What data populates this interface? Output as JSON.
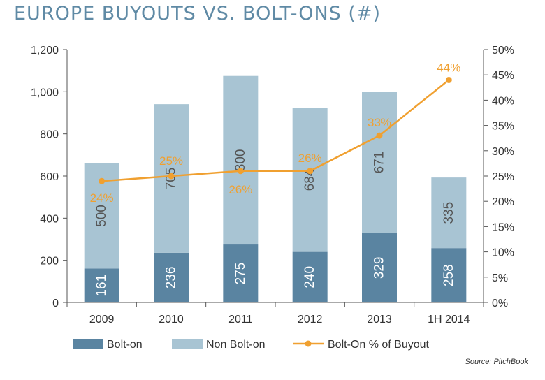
{
  "chart_data": {
    "type": "bar",
    "title": "EUROPE BUYOUTS VS. BOLT-ONS (#)",
    "categories": [
      "2009",
      "2010",
      "2011",
      "2012",
      "2013",
      "1H 2014"
    ],
    "series": [
      {
        "name": "Bolt-on",
        "type": "bar",
        "stack": "deals",
        "values": [
          161,
          236,
          275,
          240,
          329,
          258
        ],
        "color": "#5a84a1"
      },
      {
        "name": "Non Bolt-on",
        "type": "bar",
        "stack": "deals",
        "values": [
          500,
          705,
          800,
          684,
          671,
          335
        ],
        "color": "#a8c4d3"
      },
      {
        "name": "Bolt-On % of Buyout",
        "type": "line",
        "axis": "right",
        "values": [
          24,
          25,
          26,
          26,
          33,
          44
        ],
        "labels": [
          "24%",
          "25%",
          "26%",
          "26%",
          "33%",
          "44%"
        ],
        "color": "#f0a030"
      }
    ],
    "y_left": {
      "min": 0,
      "max": 1200,
      "ticks": [
        0,
        200,
        400,
        600,
        800,
        1000,
        1200
      ],
      "tick_labels": [
        "0",
        "200",
        "400",
        "600",
        "800",
        "1,000",
        "1,200"
      ]
    },
    "y_right": {
      "min": 0,
      "max": 50,
      "ticks": [
        0,
        5,
        10,
        15,
        20,
        25,
        30,
        35,
        40,
        45,
        50
      ],
      "tick_labels": [
        "0%",
        "5%",
        "10%",
        "15%",
        "20%",
        "25%",
        "30%",
        "35%",
        "40%",
        "45%",
        "50%"
      ]
    },
    "legend": {
      "position": "bottom",
      "entries": [
        "Bolt-on",
        "Non Bolt-on",
        "Bolt-On % of Buyout"
      ]
    },
    "grid": false,
    "source": "Source: PitchBook"
  }
}
